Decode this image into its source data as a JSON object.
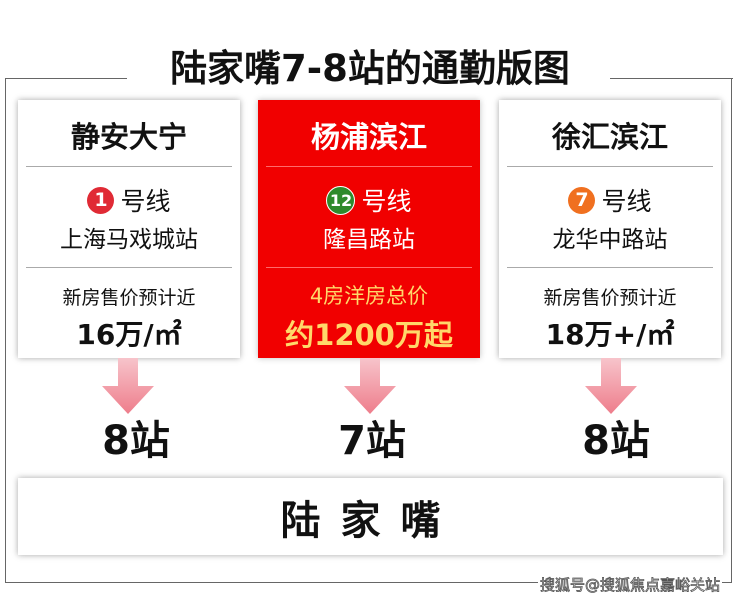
{
  "title": "陆家嘴7-8站的通勤版图",
  "cards": [
    {
      "name": "静安大宁",
      "line_number": "1",
      "line_suffix": "号线",
      "line_color": "#e02a35",
      "station": "上海马戏城站",
      "price_label": "新房售价预计近",
      "price_value": "16万/㎡",
      "stops": "8站"
    },
    {
      "name": "杨浦滨江",
      "line_number": "12",
      "line_suffix": "号线",
      "line_color": "#2f8a2b",
      "station": "隆昌路站",
      "price_label": "4房洋房总价",
      "price_value": "约1200万起",
      "stops": "7站"
    },
    {
      "name": "徐汇滨江",
      "line_number": "7",
      "line_suffix": "号线",
      "line_color": "#f07020",
      "station": "龙华中路站",
      "price_label": "新房售价预计近",
      "price_value": "18万+/㎡",
      "stops": "8站"
    }
  ],
  "destination": "陆家嘴",
  "watermark": "搜狐号@搜狐焦点嘉峪关站",
  "colors": {
    "highlight": "#f10000",
    "arrow": "#f08a96",
    "highlight_text": "#ffd86a"
  }
}
